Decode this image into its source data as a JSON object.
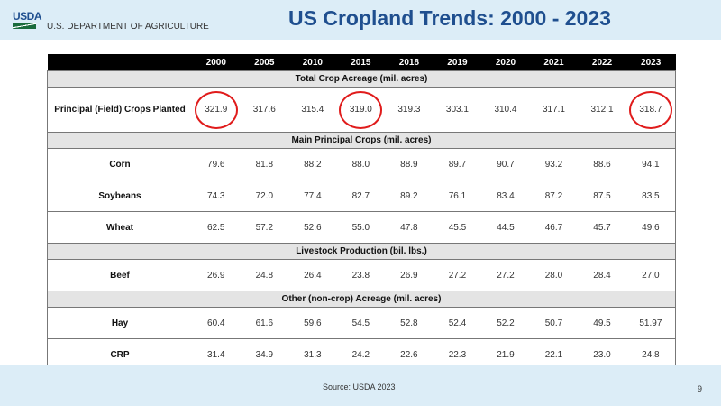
{
  "header": {
    "logo_text": "USDA",
    "department": "U.S. DEPARTMENT OF AGRICULTURE",
    "title": "US Cropland Trends: 2000 - 2023"
  },
  "table": {
    "years": [
      "2000",
      "2005",
      "2010",
      "2015",
      "2018",
      "2019",
      "2020",
      "2021",
      "2022",
      "2023"
    ],
    "sections": [
      {
        "title": "Total Crop Acreage (mil. acres)",
        "rows": [
          {
            "label": "Principal (Field) Crops Planted",
            "values": [
              "321.9",
              "317.6",
              "315.4",
              "319.0",
              "319.3",
              "303.1",
              "310.4",
              "317.1",
              "312.1",
              "318.7"
            ],
            "circled": [
              "2000",
              "2015",
              "2023"
            ]
          }
        ]
      },
      {
        "title": "Main Principal Crops (mil. acres)",
        "rows": [
          {
            "label": "Corn",
            "values": [
              "79.6",
              "81.8",
              "88.2",
              "88.0",
              "88.9",
              "89.7",
              "90.7",
              "93.2",
              "88.6",
              "94.1"
            ]
          },
          {
            "label": "Soybeans",
            "values": [
              "74.3",
              "72.0",
              "77.4",
              "82.7",
              "89.2",
              "76.1",
              "83.4",
              "87.2",
              "87.5",
              "83.5"
            ]
          },
          {
            "label": "Wheat",
            "values": [
              "62.5",
              "57.2",
              "52.6",
              "55.0",
              "47.8",
              "45.5",
              "44.5",
              "46.7",
              "45.7",
              "49.6"
            ]
          }
        ]
      },
      {
        "title": "Livestock Production (bil. lbs.)",
        "rows": [
          {
            "label": "Beef",
            "values": [
              "26.9",
              "24.8",
              "26.4",
              "23.8",
              "26.9",
              "27.2",
              "27.2",
              "28.0",
              "28.4",
              "27.0"
            ]
          }
        ]
      },
      {
        "title": "Other (non-crop) Acreage (mil. acres)",
        "rows": [
          {
            "label": "Hay",
            "values": [
              "60.4",
              "61.6",
              "59.6",
              "54.5",
              "52.8",
              "52.4",
              "52.2",
              "50.7",
              "49.5",
              "51.97"
            ]
          },
          {
            "label": "CRP",
            "values": [
              "31.4",
              "34.9",
              "31.3",
              "24.2",
              "22.6",
              "22.3",
              "21.9",
              "22.1",
              "23.0",
              "24.8"
            ]
          }
        ]
      }
    ]
  },
  "footer": {
    "source": "Source: USDA 2023",
    "page": "9"
  },
  "colors": {
    "title": "#1f4f8f",
    "band": "#dcedf7",
    "circle": "#e01b1b"
  }
}
